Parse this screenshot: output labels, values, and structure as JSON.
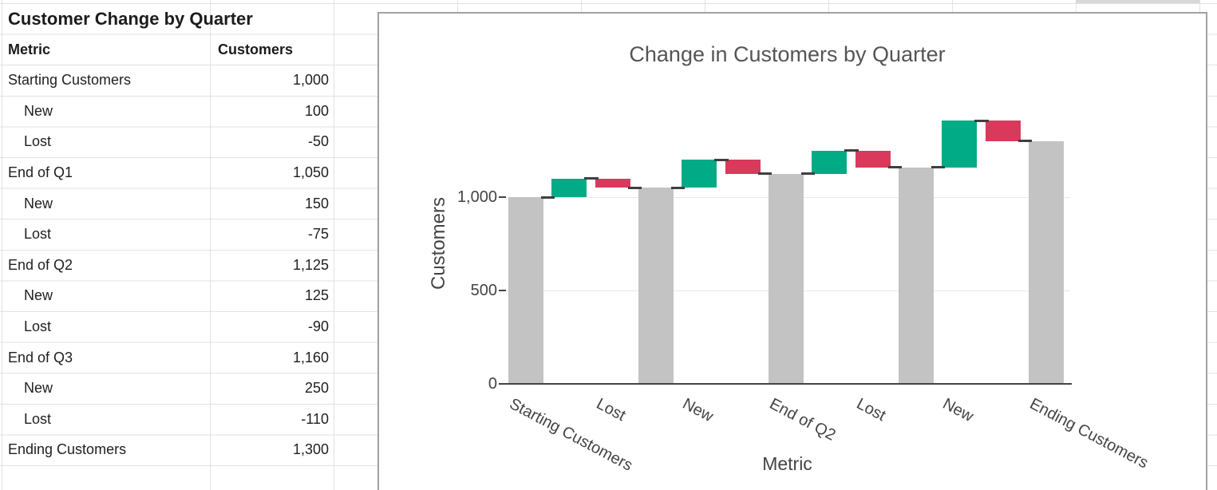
{
  "sheet": {
    "table": {
      "title": "Customer Change by Quarter",
      "columns": {
        "metric": "Metric",
        "value": "Customers"
      },
      "rows": [
        {
          "metric": "Starting Customers",
          "value": "1,000",
          "indent": false
        },
        {
          "metric": "New",
          "value": "100",
          "indent": true
        },
        {
          "metric": "Lost",
          "value": "-50",
          "indent": true
        },
        {
          "metric": "End of Q1",
          "value": "1,050",
          "indent": false
        },
        {
          "metric": "New",
          "value": "150",
          "indent": true
        },
        {
          "metric": "Lost",
          "value": "-75",
          "indent": true
        },
        {
          "metric": "End of Q2",
          "value": "1,125",
          "indent": false
        },
        {
          "metric": "New",
          "value": "125",
          "indent": true
        },
        {
          "metric": "Lost",
          "value": "-90",
          "indent": true
        },
        {
          "metric": "End of Q3",
          "value": "1,160",
          "indent": false
        },
        {
          "metric": "New",
          "value": "250",
          "indent": true
        },
        {
          "metric": "Lost",
          "value": "-110",
          "indent": true
        },
        {
          "metric": "Ending Customers",
          "value": "1,300",
          "indent": false
        }
      ]
    }
  },
  "chart_data": {
    "type": "bar",
    "subtype": "waterfall",
    "title": "Change in Customers by Quarter",
    "xlabel": "Metric",
    "ylabel": "Customers",
    "ylim": [
      0,
      1500
    ],
    "grid": true,
    "legend": "none",
    "label_every_other_tick": true,
    "yticks": [
      {
        "value": 0,
        "label": "0"
      },
      {
        "value": 500,
        "label": "500"
      },
      {
        "value": 1000,
        "label": "1,000"
      }
    ],
    "steps": [
      {
        "label": "Starting Customers",
        "kind": "total",
        "value": 1000,
        "cumulative": 1000
      },
      {
        "label": "New",
        "kind": "increase",
        "value": 100,
        "cumulative": 1100
      },
      {
        "label": "Lost",
        "kind": "decrease",
        "value": -50,
        "cumulative": 1050
      },
      {
        "label": "End of Q1",
        "kind": "total",
        "value": 1050,
        "cumulative": 1050
      },
      {
        "label": "New",
        "kind": "increase",
        "value": 150,
        "cumulative": 1200
      },
      {
        "label": "Lost",
        "kind": "decrease",
        "value": -75,
        "cumulative": 1125
      },
      {
        "label": "End of Q2",
        "kind": "total",
        "value": 1125,
        "cumulative": 1125
      },
      {
        "label": "New",
        "kind": "increase",
        "value": 125,
        "cumulative": 1250
      },
      {
        "label": "Lost",
        "kind": "decrease",
        "value": -90,
        "cumulative": 1160
      },
      {
        "label": "End of Q3",
        "kind": "total",
        "value": 1160,
        "cumulative": 1160
      },
      {
        "label": "New",
        "kind": "increase",
        "value": 250,
        "cumulative": 1410
      },
      {
        "label": "Lost",
        "kind": "decrease",
        "value": -110,
        "cumulative": 1300
      },
      {
        "label": "Ending Customers",
        "kind": "total",
        "value": 1300,
        "cumulative": 1300
      }
    ],
    "colors": {
      "increase": "#00AB85",
      "decrease": "#D93A5C",
      "total": "#C3C3C3",
      "connector": "#3F3F3F",
      "axis": "#444444",
      "gridline": "#E8E8E8",
      "title_text": "#555555"
    }
  }
}
